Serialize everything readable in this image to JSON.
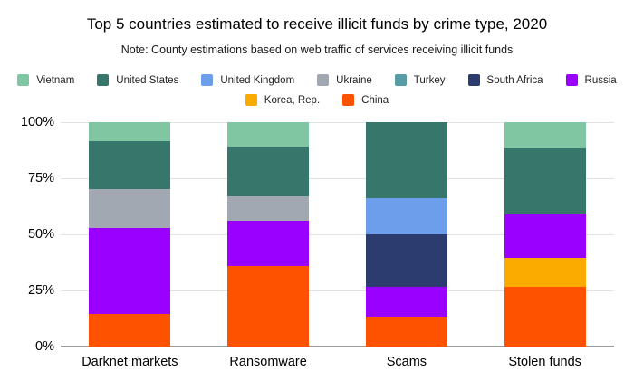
{
  "title": "Top 5 countries estimated to receive illicit funds by crime type, 2020",
  "subtitle": "Note: County estimations based on web traffic of services receiving illicit funds",
  "colors": {
    "Vietnam": "#81c6a2",
    "United States": "#37766a",
    "United Kingdom": "#6d9eeb",
    "Ukraine": "#a1a8b2",
    "Turkey": "#579ba4",
    "South Africa": "#2c3c6f",
    "Russia": "#9900ff",
    "Korea, Rep.": "#fbab00",
    "China": "#ff5200"
  },
  "legend": {
    "rows": [
      [
        "Vietnam",
        "United States",
        "United Kingdom",
        "Ukraine",
        "Turkey",
        "South Africa",
        "Russia"
      ],
      [
        "Korea, Rep.",
        "China"
      ]
    ]
  },
  "axis": {
    "ytick_labels_top_to_bottom": [
      "100%",
      "75%",
      "50%",
      "25%",
      "0%"
    ]
  },
  "chart_data": {
    "type": "bar",
    "stacked": true,
    "unit": "percent",
    "title": "Top 5 countries estimated to receive illicit funds by crime type, 2020",
    "categories": [
      "Darknet markets",
      "Ransomware",
      "Scams",
      "Stolen funds"
    ],
    "series_bottom_to_top": [
      {
        "name": "China",
        "color": "#ff5200",
        "values": [
          14.5,
          36,
          13.5,
          26.5
        ]
      },
      {
        "name": "Korea, Rep.",
        "color": "#fbab00",
        "values": [
          0,
          0,
          0,
          13
        ]
      },
      {
        "name": "Russia",
        "color": "#9900ff",
        "values": [
          38.5,
          20,
          13,
          19.5
        ]
      },
      {
        "name": "South Africa",
        "color": "#2c3c6f",
        "values": [
          0,
          0,
          23.5,
          0
        ]
      },
      {
        "name": "Ukraine",
        "color": "#a1a8b2",
        "values": [
          17,
          11,
          0,
          0
        ]
      },
      {
        "name": "United Kingdom",
        "color": "#6d9eeb",
        "values": [
          0,
          0,
          16,
          0
        ]
      },
      {
        "name": "Turkey",
        "color": "#579ba4",
        "values": [
          0,
          0,
          0,
          0
        ]
      },
      {
        "name": "United States",
        "color": "#37766a",
        "values": [
          21.5,
          22,
          34,
          29.5
        ]
      },
      {
        "name": "Vietnam",
        "color": "#81c6a2",
        "values": [
          8.5,
          11,
          0,
          11.5
        ]
      }
    ],
    "ylim": [
      0,
      100
    ],
    "yticks": [
      0,
      25,
      50,
      75,
      100
    ],
    "grid": true,
    "legend_position": "top"
  }
}
